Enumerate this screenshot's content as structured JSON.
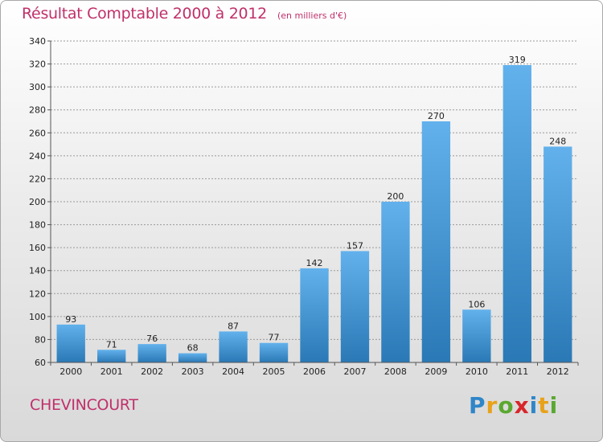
{
  "title": "Résultat Comptable 2000 à 2012",
  "subtitle": "(en milliers d'€)",
  "commune": "CHEVINCOURT",
  "logo": {
    "text": "Proxiti",
    "letters": [
      {
        "char": "P",
        "color": "#2f86c8"
      },
      {
        "char": "r",
        "color": "#e8a21a"
      },
      {
        "char": "o",
        "color": "#5aa830"
      },
      {
        "char": "x",
        "color": "#d8262b"
      },
      {
        "char": "i",
        "color": "#2f86c8"
      },
      {
        "char": "t",
        "color": "#e8a21a"
      },
      {
        "char": "i",
        "color": "#5aa830"
      }
    ]
  },
  "chart_data": {
    "type": "bar",
    "title": "Résultat Comptable 2000 à 2012",
    "subtitle": "(en milliers d'€)",
    "categories": [
      "2000",
      "2001",
      "2002",
      "2003",
      "2004",
      "2005",
      "2006",
      "2007",
      "2008",
      "2009",
      "2010",
      "2011",
      "2012"
    ],
    "values": [
      93,
      71,
      76,
      68,
      87,
      77,
      142,
      157,
      200,
      270,
      106,
      319,
      248
    ],
    "data_labels": [
      "93",
      "71",
      "76",
      "68",
      "87",
      "77",
      "142",
      "157",
      "200",
      "270",
      "106",
      "319",
      "248"
    ],
    "ylim": [
      60,
      340
    ],
    "yticks": [
      60,
      80,
      100,
      120,
      140,
      160,
      180,
      200,
      220,
      240,
      260,
      280,
      300,
      320,
      340
    ],
    "ytick_labels": [
      "60",
      "80",
      "100",
      "120",
      "140",
      "160",
      "180",
      "200",
      "220",
      "240",
      "260",
      "280",
      "300",
      "320",
      "340"
    ],
    "grid": true,
    "legend": "none",
    "bar_color_top": "#62b1ec",
    "bar_color_bottom": "#2a79b6",
    "grid_color": "#9a9a9a"
  }
}
